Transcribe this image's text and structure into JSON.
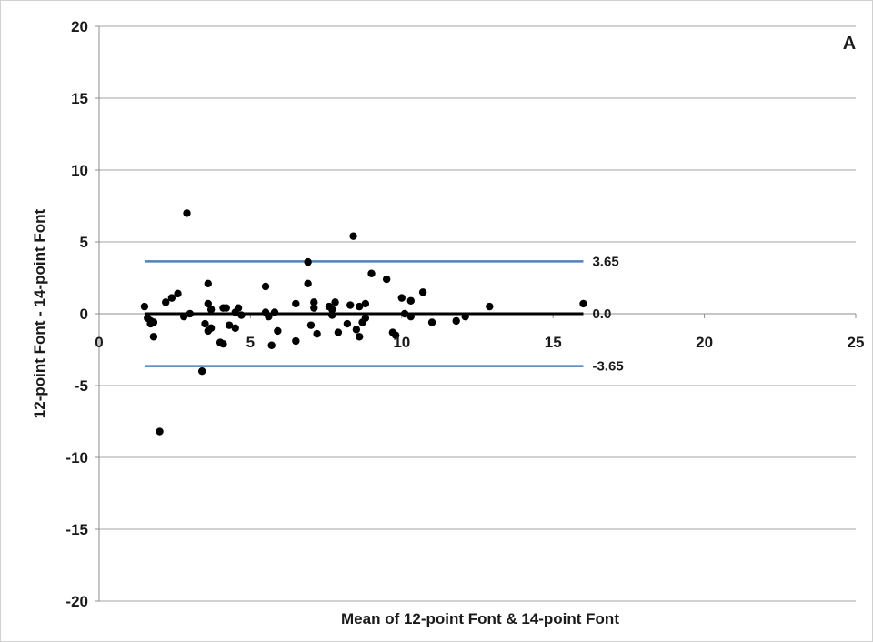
{
  "chart_data": {
    "type": "scatter",
    "panel_label": "A",
    "xlabel": "Mean of 12-point Font & 14-point Font",
    "ylabel": "12-point Font - 14-point Font",
    "xlim": [
      0,
      25
    ],
    "ylim": [
      -20,
      20
    ],
    "x_ticks": [
      0,
      5,
      10,
      15,
      20,
      25
    ],
    "y_ticks": [
      20,
      15,
      10,
      5,
      0,
      -5,
      -10,
      -15,
      -20
    ],
    "grid": "horizontal",
    "colors": {
      "points": "#000000",
      "mean_line": "#000000",
      "limit_lines": "#4f81bd",
      "grid": "#a6a6a6"
    },
    "reference_lines": [
      {
        "label": "3.65",
        "y": 3.65,
        "x_start": 1.5,
        "x_end": 16,
        "role": "upper-limit"
      },
      {
        "label": "0.0",
        "y": 0.0,
        "x_start": 1.5,
        "x_end": 16,
        "role": "mean"
      },
      {
        "label": "-3.65",
        "y": -3.65,
        "x_start": 1.5,
        "x_end": 16,
        "role": "lower-limit"
      }
    ],
    "points": [
      [
        1.5,
        0.5
      ],
      [
        1.6,
        -0.3
      ],
      [
        1.7,
        -0.7
      ],
      [
        1.7,
        -0.5
      ],
      [
        1.8,
        -1.6
      ],
      [
        1.8,
        -0.6
      ],
      [
        2.0,
        -8.2
      ],
      [
        2.2,
        0.8
      ],
      [
        2.4,
        1.1
      ],
      [
        2.6,
        1.4
      ],
      [
        2.8,
        -0.2
      ],
      [
        2.9,
        7.0
      ],
      [
        3.0,
        0.0
      ],
      [
        3.4,
        -4.0
      ],
      [
        3.5,
        -0.7
      ],
      [
        3.6,
        2.1
      ],
      [
        3.6,
        0.7
      ],
      [
        3.6,
        -1.2
      ],
      [
        3.7,
        0.3
      ],
      [
        3.7,
        -1.0
      ],
      [
        4.0,
        -2.0
      ],
      [
        4.1,
        -2.1
      ],
      [
        4.1,
        0.4
      ],
      [
        4.2,
        0.4
      ],
      [
        4.3,
        -0.8
      ],
      [
        4.5,
        0.1
      ],
      [
        4.5,
        -1.0
      ],
      [
        4.6,
        0.4
      ],
      [
        4.7,
        -0.1
      ],
      [
        5.5,
        1.9
      ],
      [
        5.5,
        0.1
      ],
      [
        5.6,
        -0.2
      ],
      [
        5.7,
        -2.2
      ],
      [
        5.8,
        0.1
      ],
      [
        5.9,
        -1.2
      ],
      [
        6.5,
        -1.9
      ],
      [
        6.5,
        0.7
      ],
      [
        6.9,
        3.6
      ],
      [
        6.9,
        2.1
      ],
      [
        7.0,
        -0.8
      ],
      [
        7.1,
        0.4
      ],
      [
        7.1,
        0.8
      ],
      [
        7.2,
        -1.4
      ],
      [
        7.6,
        0.5
      ],
      [
        7.7,
        -0.1
      ],
      [
        7.7,
        0.3
      ],
      [
        7.8,
        0.8
      ],
      [
        7.9,
        -1.3
      ],
      [
        8.2,
        -0.7
      ],
      [
        8.3,
        0.6
      ],
      [
        8.4,
        5.4
      ],
      [
        8.5,
        -1.1
      ],
      [
        8.6,
        -1.6
      ],
      [
        8.6,
        0.5
      ],
      [
        8.7,
        -0.6
      ],
      [
        8.8,
        -0.3
      ],
      [
        8.8,
        0.7
      ],
      [
        9.0,
        2.8
      ],
      [
        9.5,
        2.4
      ],
      [
        9.7,
        -1.3
      ],
      [
        9.8,
        -1.5
      ],
      [
        10.0,
        1.1
      ],
      [
        10.1,
        0.0
      ],
      [
        10.3,
        0.9
      ],
      [
        10.3,
        -0.2
      ],
      [
        10.7,
        1.5
      ],
      [
        11.0,
        -0.6
      ],
      [
        11.8,
        -0.5
      ],
      [
        12.1,
        -0.2
      ],
      [
        12.9,
        0.5
      ],
      [
        16.0,
        0.7
      ]
    ]
  }
}
